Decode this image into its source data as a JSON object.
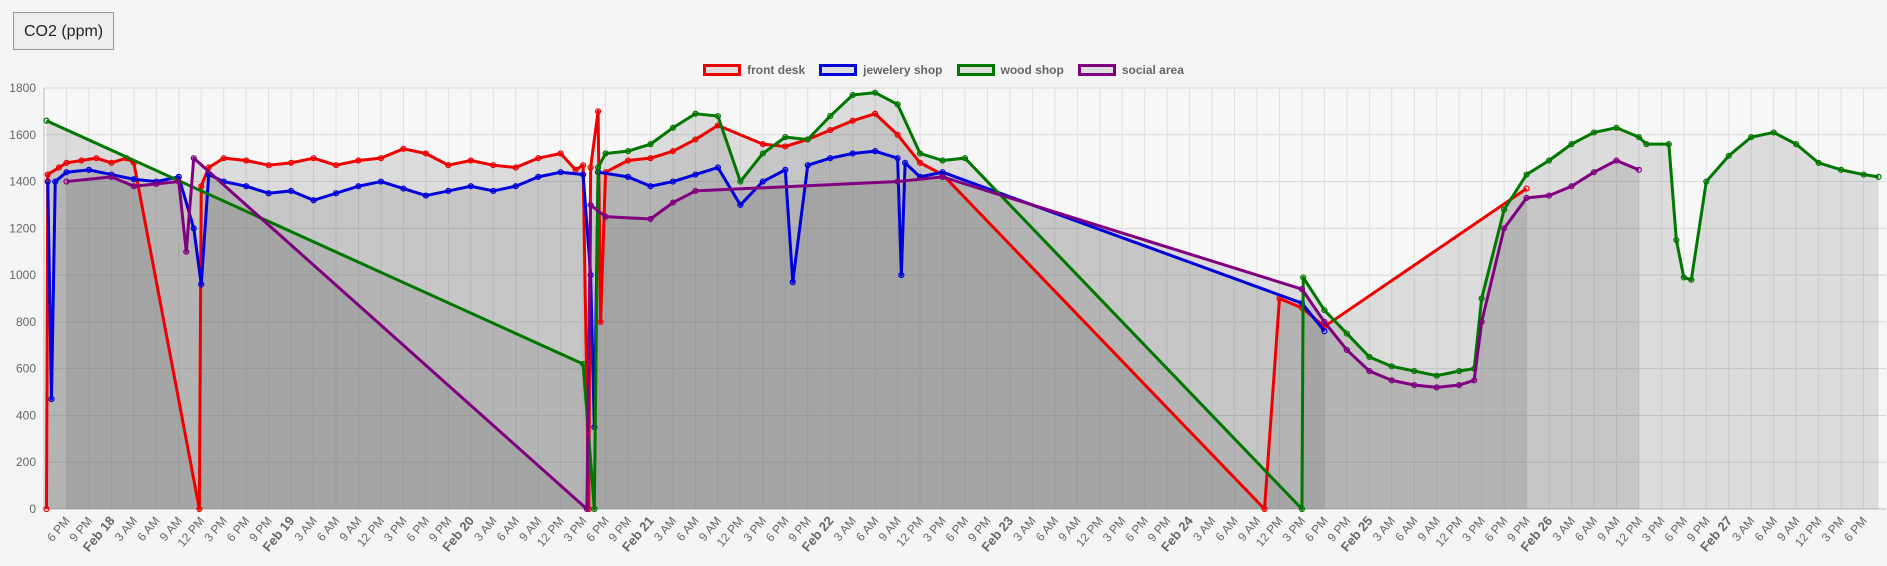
{
  "toolbar": {
    "metric_label": "CO2 (ppm)"
  },
  "colors": {
    "front_desk": "#ee0000",
    "jewelery_shop": "#0000dd",
    "wood_shop": "#007700",
    "social_area": "#800080"
  },
  "chart_data": {
    "type": "line",
    "title": "",
    "xlabel": "",
    "ylabel": "",
    "ylim": [
      0,
      1800
    ],
    "grid": true,
    "legend_position": "top-center",
    "y_ticks": [
      "0",
      "200",
      "400",
      "600",
      "800",
      "1000",
      "1200",
      "1400",
      "1600",
      "1800"
    ],
    "x_start": "Feb 17 3 PM",
    "x_end": "Feb 27 9 PM",
    "x_ticks": [
      "6 PM",
      "9 PM",
      "Feb 18",
      "3 AM",
      "6 AM",
      "9 AM",
      "12 PM",
      "3 PM",
      "6 PM",
      "9 PM",
      "Feb 19",
      "3 AM",
      "6 AM",
      "9 AM",
      "12 PM",
      "3 PM",
      "6 PM",
      "9 PM",
      "Feb 20",
      "3 AM",
      "6 AM",
      "9 AM",
      "12 PM",
      "3 PM",
      "6 PM",
      "9 PM",
      "Feb 21",
      "3 AM",
      "6 AM",
      "9 AM",
      "12 PM",
      "3 PM",
      "6 PM",
      "9 PM",
      "Feb 22",
      "3 AM",
      "6 AM",
      "9 AM",
      "12 PM",
      "3 PM",
      "6 PM",
      "9 PM",
      "Feb 23",
      "3 AM",
      "6 AM",
      "9 AM",
      "12 PM",
      "3 PM",
      "6 PM",
      "9 PM",
      "Feb 24",
      "3 AM",
      "6 AM",
      "9 AM",
      "12 PM",
      "3 PM",
      "6 PM",
      "9 PM",
      "Feb 25",
      "3 AM",
      "6 AM",
      "9 AM",
      "12 PM",
      "3 PM",
      "6 PM",
      "9 PM",
      "Feb 26",
      "3 AM",
      "6 AM",
      "9 AM",
      "12 PM",
      "3 PM",
      "6 PM",
      "9 PM",
      "Feb 27",
      "3 AM",
      "6 AM",
      "9 AM",
      "12 PM",
      "3 PM",
      "6 PM"
    ],
    "series": [
      {
        "name": "front desk",
        "color": "#ee0000",
        "points": [
          [
            "Feb 17 3:20 PM",
            0
          ],
          [
            "Feb 17 3:30 PM",
            1430
          ],
          [
            "Feb 17 5 PM",
            1460
          ],
          [
            "Feb 17 6 PM",
            1480
          ],
          [
            "Feb 17 8 PM",
            1490
          ],
          [
            "Feb 17 10 PM",
            1500
          ],
          [
            "Feb 18 12 AM",
            1480
          ],
          [
            "Feb 18 2 AM",
            1500
          ],
          [
            "Feb 18 3 AM",
            1480
          ],
          [
            "Feb 18 11:45 AM",
            0
          ],
          [
            "Feb 18 12 PM",
            1380
          ],
          [
            "Feb 18 1 PM",
            1460
          ],
          [
            "Feb 18 3 PM",
            1500
          ],
          [
            "Feb 18 6 PM",
            1490
          ],
          [
            "Feb 18 9 PM",
            1470
          ],
          [
            "Feb 19 12 AM",
            1480
          ],
          [
            "Feb 19 3 AM",
            1500
          ],
          [
            "Feb 19 6 AM",
            1470
          ],
          [
            "Feb 19 9 AM",
            1490
          ],
          [
            "Feb 19 12 PM",
            1500
          ],
          [
            "Feb 19 3 PM",
            1540
          ],
          [
            "Feb 19 6 PM",
            1520
          ],
          [
            "Feb 19 9 PM",
            1470
          ],
          [
            "Feb 20 12 AM",
            1490
          ],
          [
            "Feb 20 3 AM",
            1470
          ],
          [
            "Feb 20 6 AM",
            1460
          ],
          [
            "Feb 20 9 AM",
            1500
          ],
          [
            "Feb 20 12 PM",
            1520
          ],
          [
            "Feb 20 2 PM",
            1450
          ],
          [
            "Feb 20 3 PM",
            1470
          ],
          [
            "Feb 20 3:45 PM",
            0
          ],
          [
            "Feb 20 4 PM",
            1460
          ],
          [
            "Feb 20 5 PM",
            1700
          ],
          [
            "Feb 20 5:20 PM",
            800
          ],
          [
            "Feb 20 6 PM",
            1440
          ],
          [
            "Feb 20 9 PM",
            1490
          ],
          [
            "Feb 21 12 AM",
            1500
          ],
          [
            "Feb 21 3 AM",
            1530
          ],
          [
            "Feb 21 6 AM",
            1580
          ],
          [
            "Feb 21 9 AM",
            1640
          ],
          [
            "Feb 21 3 PM",
            1560
          ],
          [
            "Feb 21 6 PM",
            1550
          ],
          [
            "Feb 21 9 PM",
            1580
          ],
          [
            "Feb 22 12 AM",
            1620
          ],
          [
            "Feb 22 3 AM",
            1660
          ],
          [
            "Feb 22 6 AM",
            1690
          ],
          [
            "Feb 22 9 AM",
            1600
          ],
          [
            "Feb 22 12 PM",
            1480
          ],
          [
            "Feb 22 3 PM",
            1430
          ],
          [
            "Feb 24 10 AM",
            0
          ],
          [
            "Feb 24 12 PM",
            900
          ],
          [
            "Feb 24 3 PM",
            860
          ],
          [
            "Feb 24 6 PM",
            780
          ],
          [
            "Feb 25 9 PM",
            1370
          ]
        ]
      },
      {
        "name": "jewelery shop",
        "color": "#0000dd",
        "points": [
          [
            "Feb 17 3:30 PM",
            1400
          ],
          [
            "Feb 17 4 PM",
            470
          ],
          [
            "Feb 17 4:30 PM",
            1400
          ],
          [
            "Feb 17 6 PM",
            1440
          ],
          [
            "Feb 17 9 PM",
            1450
          ],
          [
            "Feb 18 12 AM",
            1430
          ],
          [
            "Feb 18 3 AM",
            1410
          ],
          [
            "Feb 18 6 AM",
            1400
          ],
          [
            "Feb 18 9 AM",
            1420
          ],
          [
            "Feb 18 11 AM",
            1200
          ],
          [
            "Feb 18 12 PM",
            960
          ],
          [
            "Feb 18 1 PM",
            1430
          ],
          [
            "Feb 18 3 PM",
            1400
          ],
          [
            "Feb 18 6 PM",
            1380
          ],
          [
            "Feb 18 9 PM",
            1350
          ],
          [
            "Feb 19 12 AM",
            1360
          ],
          [
            "Feb 19 3 AM",
            1320
          ],
          [
            "Feb 19 6 AM",
            1350
          ],
          [
            "Feb 19 9 AM",
            1380
          ],
          [
            "Feb 19 12 PM",
            1400
          ],
          [
            "Feb 19 3 PM",
            1370
          ],
          [
            "Feb 19 6 PM",
            1340
          ],
          [
            "Feb 19 9 PM",
            1360
          ],
          [
            "Feb 20 12 AM",
            1380
          ],
          [
            "Feb 20 3 AM",
            1360
          ],
          [
            "Feb 20 6 AM",
            1380
          ],
          [
            "Feb 20 9 AM",
            1420
          ],
          [
            "Feb 20 12 PM",
            1440
          ],
          [
            "Feb 20 3 PM",
            1430
          ],
          [
            "Feb 20 4 PM",
            1000
          ],
          [
            "Feb 20 4:30 PM",
            350
          ],
          [
            "Feb 20 5 PM",
            1440
          ],
          [
            "Feb 20 9 PM",
            1420
          ],
          [
            "Feb 21 12 AM",
            1380
          ],
          [
            "Feb 21 3 AM",
            1400
          ],
          [
            "Feb 21 6 AM",
            1430
          ],
          [
            "Feb 21 9 AM",
            1460
          ],
          [
            "Feb 21 12 PM",
            1300
          ],
          [
            "Feb 21 3 PM",
            1400
          ],
          [
            "Feb 21 6 PM",
            1450
          ],
          [
            "Feb 21 7 PM",
            970
          ],
          [
            "Feb 21 9 PM",
            1470
          ],
          [
            "Feb 22 12 AM",
            1500
          ],
          [
            "Feb 22 3 AM",
            1520
          ],
          [
            "Feb 22 6 AM",
            1530
          ],
          [
            "Feb 22 9 AM",
            1500
          ],
          [
            "Feb 22 9:30 AM",
            1000
          ],
          [
            "Feb 22 10 AM",
            1480
          ],
          [
            "Feb 22 12 PM",
            1420
          ],
          [
            "Feb 22 3 PM",
            1440
          ],
          [
            "Feb 24 3 PM",
            880
          ],
          [
            "Feb 24 6 PM",
            760
          ]
        ]
      },
      {
        "name": "wood shop",
        "color": "#007700",
        "points": [
          [
            "Feb 17 3:20 PM",
            1660
          ],
          [
            "Feb 20 3 PM",
            620
          ],
          [
            "Feb 20 4:30 PM",
            0
          ],
          [
            "Feb 20 5 PM",
            1460
          ],
          [
            "Feb 20 6 PM",
            1520
          ],
          [
            "Feb 20 9 PM",
            1530
          ],
          [
            "Feb 21 12 AM",
            1560
          ],
          [
            "Feb 21 3 AM",
            1630
          ],
          [
            "Feb 21 6 AM",
            1690
          ],
          [
            "Feb 21 9 AM",
            1680
          ],
          [
            "Feb 21 12 PM",
            1400
          ],
          [
            "Feb 21 3 PM",
            1520
          ],
          [
            "Feb 21 6 PM",
            1590
          ],
          [
            "Feb 21 9 PM",
            1580
          ],
          [
            "Feb 22 12 AM",
            1680
          ],
          [
            "Feb 22 3 AM",
            1770
          ],
          [
            "Feb 22 6 AM",
            1780
          ],
          [
            "Feb 22 9 AM",
            1730
          ],
          [
            "Feb 22 12 PM",
            1520
          ],
          [
            "Feb 22 3 PM",
            1490
          ],
          [
            "Feb 22 6 PM",
            1500
          ],
          [
            "Feb 24 3 PM",
            0
          ],
          [
            "Feb 24 3:10 PM",
            990
          ],
          [
            "Feb 24 6 PM",
            850
          ],
          [
            "Feb 24 9 PM",
            750
          ],
          [
            "Feb 25 12 AM",
            650
          ],
          [
            "Feb 25 3 AM",
            610
          ],
          [
            "Feb 25 6 AM",
            590
          ],
          [
            "Feb 25 9 AM",
            570
          ],
          [
            "Feb 25 12 PM",
            590
          ],
          [
            "Feb 25 2 PM",
            600
          ],
          [
            "Feb 25 3 PM",
            900
          ],
          [
            "Feb 25 6 PM",
            1280
          ],
          [
            "Feb 25 9 PM",
            1430
          ],
          [
            "Feb 26 12 AM",
            1490
          ],
          [
            "Feb 26 3 AM",
            1560
          ],
          [
            "Feb 26 6 AM",
            1610
          ],
          [
            "Feb 26 9 AM",
            1630
          ],
          [
            "Feb 26 12 PM",
            1590
          ],
          [
            "Feb 26 1 PM",
            1560
          ],
          [
            "Feb 26 4 PM",
            1560
          ],
          [
            "Feb 26 5 PM",
            1150
          ],
          [
            "Feb 26 6 PM",
            990
          ],
          [
            "Feb 26 7 PM",
            980
          ],
          [
            "Feb 26 9 PM",
            1400
          ],
          [
            "Feb 27 12 AM",
            1510
          ],
          [
            "Feb 27 3 AM",
            1590
          ],
          [
            "Feb 27 6 AM",
            1610
          ],
          [
            "Feb 27 9 AM",
            1560
          ],
          [
            "Feb 27 12 PM",
            1480
          ],
          [
            "Feb 27 3 PM",
            1450
          ],
          [
            "Feb 27 6 PM",
            1430
          ],
          [
            "Feb 27 8 PM",
            1420
          ]
        ]
      },
      {
        "name": "social area",
        "color": "#800080",
        "points": [
          [
            "Feb 17 6 PM",
            1400
          ],
          [
            "Feb 18 12 AM",
            1420
          ],
          [
            "Feb 18 3 AM",
            1380
          ],
          [
            "Feb 18 6 AM",
            1390
          ],
          [
            "Feb 18 9 AM",
            1400
          ],
          [
            "Feb 18 10 AM",
            1100
          ],
          [
            "Feb 18 11 AM",
            1500
          ],
          [
            "Feb 20 3:30 PM",
            0
          ],
          [
            "Feb 20 4 PM",
            1300
          ],
          [
            "Feb 20 6 PM",
            1250
          ],
          [
            "Feb 21 12 AM",
            1240
          ],
          [
            "Feb 21 3 AM",
            1310
          ],
          [
            "Feb 21 6 AM",
            1360
          ],
          [
            "Feb 22 9 AM",
            1400
          ],
          [
            "Feb 22 3 PM",
            1420
          ],
          [
            "Feb 24 3 PM",
            940
          ],
          [
            "Feb 24 6 PM",
            800
          ],
          [
            "Feb 24 9 PM",
            680
          ],
          [
            "Feb 25 12 AM",
            590
          ],
          [
            "Feb 25 3 AM",
            550
          ],
          [
            "Feb 25 6 AM",
            530
          ],
          [
            "Feb 25 9 AM",
            520
          ],
          [
            "Feb 25 12 PM",
            530
          ],
          [
            "Feb 25 2 PM",
            550
          ],
          [
            "Feb 25 3 PM",
            800
          ],
          [
            "Feb 25 6 PM",
            1200
          ],
          [
            "Feb 25 9 PM",
            1330
          ],
          [
            "Feb 26 12 AM",
            1340
          ],
          [
            "Feb 26 3 AM",
            1380
          ],
          [
            "Feb 26 6 AM",
            1440
          ],
          [
            "Feb 26 9 AM",
            1490
          ],
          [
            "Feb 26 12 PM",
            1450
          ]
        ]
      }
    ]
  }
}
